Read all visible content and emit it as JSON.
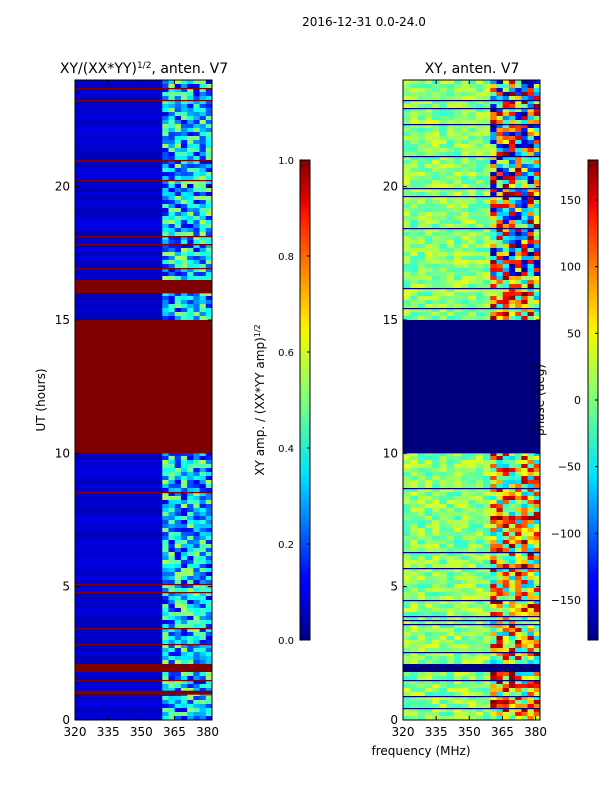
{
  "figure": {
    "suptitle": "2016-12-31 0.0-24.0",
    "shared_xlabel": "frequency (MHz)"
  },
  "chart_data": [
    {
      "type": "heatmap",
      "title_main": "XY/(XX*YY)",
      "title_sup": "1/2",
      "title_rest": ", anten. V7",
      "xlabel": "",
      "ylabel": "UT (hours)",
      "xlim": [
        320,
        382
      ],
      "ylim": [
        0,
        24
      ],
      "xticks": [
        320,
        335,
        350,
        365,
        380
      ],
      "yticks": [
        0,
        5,
        10,
        15,
        20
      ],
      "band_boundary_mhz": 359.5,
      "saturated_hours": [
        [
          10.0,
          15.0
        ],
        [
          16.0,
          16.5
        ],
        [
          1.8,
          2.1
        ],
        [
          0.95,
          1.1
        ]
      ],
      "colorbar": {
        "label_main": "XY amp. / (XX*YY amp)",
        "label_sup": "1/2",
        "vmin": 0.0,
        "vmax": 1.0,
        "ticks": [
          0.0,
          0.2,
          0.4,
          0.6,
          0.8,
          1.0
        ],
        "tick_labels": [
          "0.0",
          "0.2",
          "0.4",
          "0.6",
          "0.8",
          "1.0"
        ]
      }
    },
    {
      "type": "heatmap",
      "title_main": "XY, anten. V7",
      "xlabel": "frequency (MHz)",
      "ylabel": "",
      "xlim": [
        320,
        382
      ],
      "ylim": [
        0,
        24
      ],
      "xticks": [
        320,
        335,
        350,
        365,
        380
      ],
      "yticks": [
        0,
        5,
        10,
        15,
        20
      ],
      "band_boundary_mhz": 359.5,
      "flagged_hours": [
        [
          10.0,
          15.0
        ],
        [
          1.8,
          2.1
        ]
      ],
      "colorbar": {
        "label_main": "phase (deg)",
        "vmin": -180,
        "vmax": 180,
        "ticks": [
          150,
          100,
          50,
          0,
          -50,
          -100,
          -150
        ],
        "tick_labels": [
          "150",
          "100",
          "50",
          "0",
          "−50",
          "−100",
          "−150"
        ]
      }
    }
  ],
  "colors": {
    "jet_low": "#00007f",
    "jet_high": "#7f0000"
  }
}
